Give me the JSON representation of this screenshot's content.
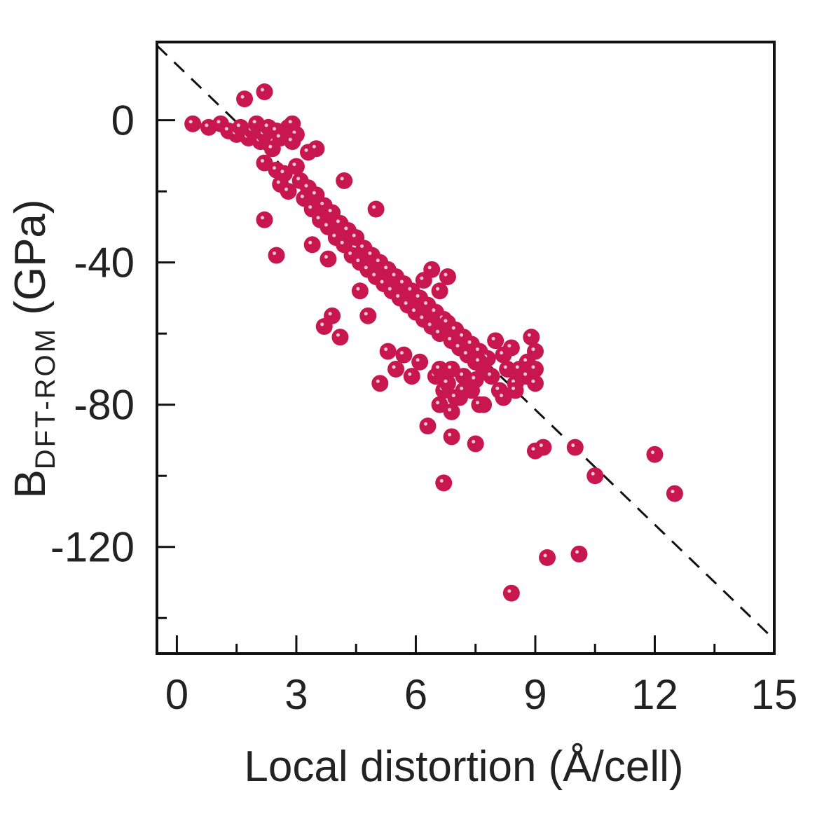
{
  "chart_data": {
    "type": "scatter",
    "xlabel": "Local distortion (Å/cell)",
    "ylabel_main": "B",
    "ylabel_sub": "DFT-ROM",
    "ylabel_unit": " (GPa)",
    "xlim": [
      -0.5,
      15
    ],
    "ylim": [
      -150,
      22
    ],
    "xticks": [
      0,
      3,
      6,
      9,
      12,
      15
    ],
    "yticks": [
      0,
      -40,
      -80,
      -120
    ],
    "x_minor_ticks": [
      1.5,
      4.5,
      7.5,
      10.5,
      13.5
    ],
    "y_minor_ticks": [
      -20,
      -60,
      -100,
      -140
    ],
    "grid": false,
    "marker_color": "#c8174f",
    "fit_line": {
      "style": "dashed",
      "color": "#111111",
      "x": [
        -0.5,
        14.9
      ],
      "y": [
        21,
        -145
      ]
    },
    "series": [
      {
        "x": [
          0.4,
          0.8,
          1.1,
          1.3,
          1.5,
          1.6,
          1.8,
          1.9,
          2.0,
          2.1,
          2.2,
          2.3,
          2.4,
          2.5,
          2.6,
          2.8,
          2.9,
          3.0,
          1.7,
          2.2,
          2.9,
          3.3,
          3.5,
          2.2,
          2.5,
          2.6,
          2.7,
          2.8,
          3.0,
          3.1,
          3.2,
          3.3,
          3.4,
          3.5,
          3.6,
          3.7,
          3.8,
          3.9,
          4.0,
          4.1,
          4.2,
          4.3,
          4.4,
          4.5,
          4.6,
          4.7,
          4.8,
          4.9,
          5.0,
          5.1,
          5.2,
          5.3,
          5.4,
          5.5,
          5.6,
          5.7,
          5.8,
          5.9,
          6.0,
          6.1,
          6.2,
          6.3,
          6.4,
          6.5,
          6.6,
          6.7,
          6.8,
          6.9,
          7.0,
          7.1,
          7.2,
          7.3,
          7.4,
          7.5,
          7.6,
          7.7,
          7.8,
          8.0,
          8.2,
          8.4,
          8.6,
          8.8,
          8.9,
          9.0,
          9.0,
          2.2,
          2.5,
          3.4,
          3.8,
          4.2,
          3.7,
          3.9,
          4.1,
          4.8,
          5.0,
          4.6,
          5.1,
          5.3,
          5.5,
          5.7,
          5.9,
          6.1,
          6.2,
          6.4,
          6.6,
          6.8,
          6.5,
          6.7,
          6.9,
          7.1,
          7.3,
          7.5,
          7.7,
          7.9,
          8.1,
          8.3,
          8.5,
          8.7,
          6.6,
          6.8,
          7.0,
          7.2,
          7.4,
          7.6,
          6.6,
          6.9,
          7.2,
          7.6,
          8.2,
          8.5,
          8.8,
          9.0,
          6.3,
          6.9,
          7.5,
          6.7,
          9.0,
          9.2,
          10.0,
          10.5,
          12.0,
          12.5,
          9.3,
          10.1,
          8.4
        ],
        "y": [
          -1,
          -2,
          -1,
          -3,
          -4,
          -2,
          -5,
          -3,
          -1,
          -6,
          -4,
          -2,
          -8,
          -3,
          -5,
          -2,
          -1,
          -4,
          6,
          8,
          -6,
          -9,
          -8,
          -12,
          -14,
          -18,
          -15,
          -20,
          -13,
          -17,
          -22,
          -19,
          -25,
          -21,
          -28,
          -24,
          -30,
          -26,
          -33,
          -29,
          -35,
          -31,
          -38,
          -33,
          -40,
          -36,
          -42,
          -38,
          -44,
          -40,
          -46,
          -42,
          -48,
          -44,
          -50,
          -46,
          -52,
          -48,
          -54,
          -50,
          -56,
          -52,
          -58,
          -54,
          -60,
          -56,
          -57,
          -62,
          -59,
          -64,
          -61,
          -66,
          -63,
          -68,
          -65,
          -70,
          -67,
          -62,
          -66,
          -64,
          -70,
          -68,
          -61,
          -70,
          -65,
          -28,
          -38,
          -35,
          -39,
          -17,
          -58,
          -55,
          -61,
          -55,
          -25,
          -48,
          -74,
          -65,
          -70,
          -66,
          -72,
          -68,
          -45,
          -42,
          -48,
          -44,
          -72,
          -76,
          -70,
          -78,
          -74,
          -73,
          -80,
          -72,
          -76,
          -70,
          -74,
          -72,
          -70,
          -74,
          -78,
          -72,
          -76,
          -68,
          -80,
          -82,
          -76,
          -80,
          -78,
          -76,
          -72,
          -74,
          -86,
          -89,
          -91,
          -102,
          -93,
          -92,
          -92,
          -100,
          -94,
          -105,
          -123,
          -122,
          -133
        ]
      }
    ]
  }
}
